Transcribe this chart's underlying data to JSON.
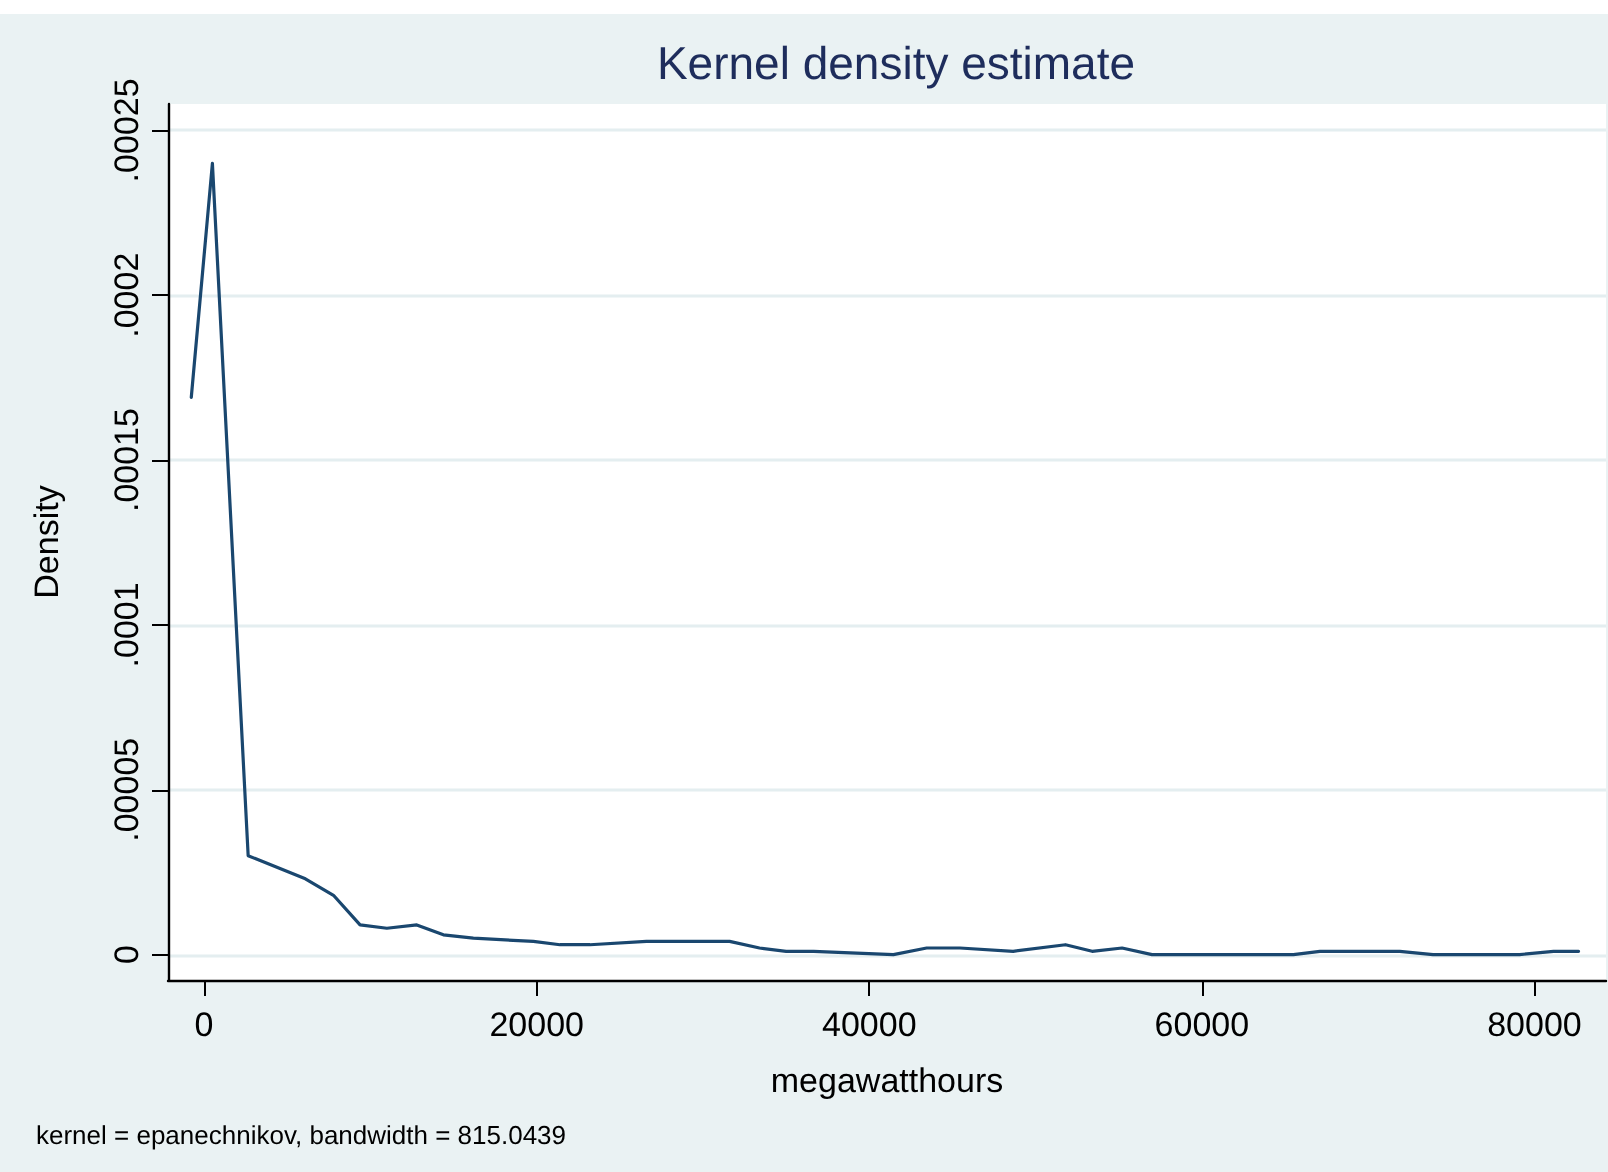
{
  "chart_data": {
    "type": "line",
    "title": "Kernel density estimate",
    "xlabel": "megawatthours",
    "ylabel": "Density",
    "annotations": [
      "kernel = epanechnikov, bandwidth = 815.0439"
    ],
    "x": [
      -770,
      500,
      2650,
      6090,
      7780,
      9380,
      10990,
      12790,
      14390,
      16190,
      19800,
      21400,
      23200,
      26600,
      29800,
      31600,
      33400,
      35000,
      36650,
      41450,
      43450,
      45450,
      48650,
      51800,
      53400,
      55200,
      57000,
      61400,
      65500,
      67100,
      71900,
      73900,
      75500,
      79100,
      81150,
      82650
    ],
    "series": [
      {
        "color": "#1a476f",
        "values": [
          0.000169,
          0.00024,
          3e-05,
          2.3e-05,
          1.8e-05,
          9e-06,
          8e-06,
          9e-06,
          6e-06,
          5e-06,
          4e-06,
          3e-06,
          3e-06,
          4e-06,
          4e-06,
          4e-06,
          2e-06,
          1e-06,
          1e-06,
          0,
          2e-06,
          2e-06,
          1e-06,
          3e-06,
          1e-06,
          2e-06,
          0,
          0,
          0,
          1e-06,
          1e-06,
          0,
          0,
          0,
          1e-06,
          1e-06
        ]
      }
    ],
    "xlim": [
      -2170,
      84300
    ],
    "xticks": [
      0,
      20000,
      40000,
      60000,
      80000
    ],
    "ylim": [
      -7.7e-06,
      0.000258
    ],
    "yticks": [
      {
        "value": 0,
        "label": "0"
      },
      {
        "value": 5e-05,
        "label": ".00005"
      },
      {
        "value": 0.0001,
        "label": ".0001"
      },
      {
        "value": 0.00015,
        "label": ".00015"
      },
      {
        "value": 0.0002,
        "label": ".0002"
      },
      {
        "value": 0.00025,
        "label": ".00025"
      }
    ],
    "grid": "y",
    "marker": "none",
    "line_style": "solid"
  }
}
